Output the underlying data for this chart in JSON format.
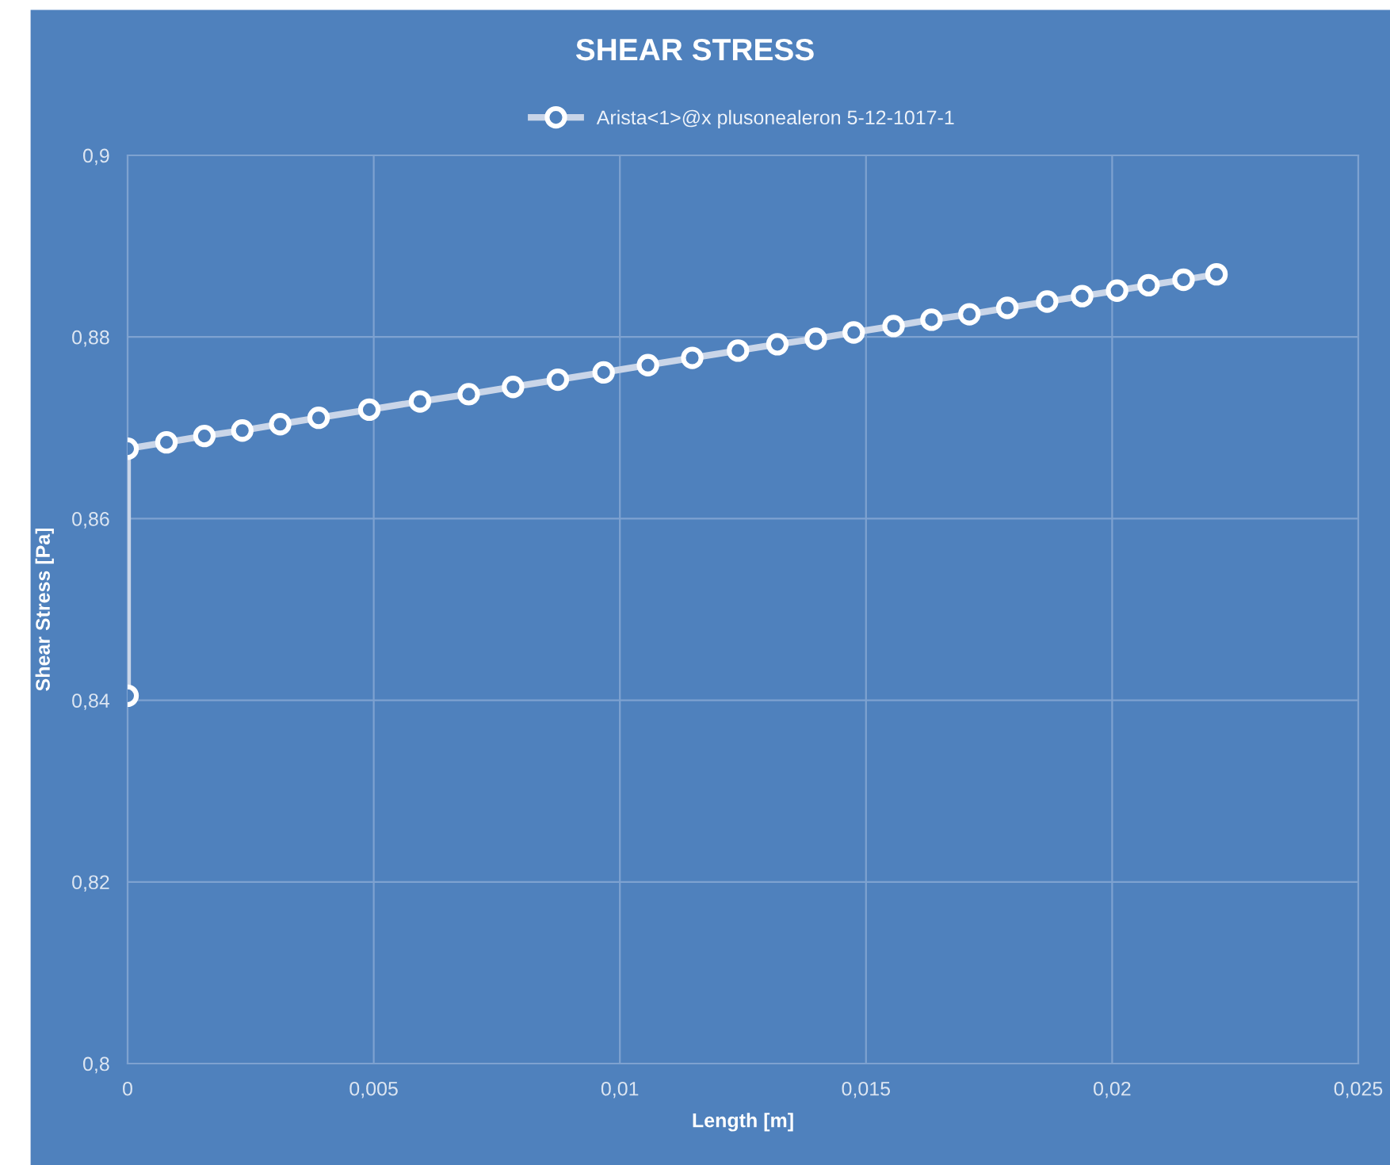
{
  "chart_data": {
    "type": "line",
    "title": "SHEAR STRESS",
    "xlabel": "Length [m]",
    "ylabel": "Shear Stress [Pa]",
    "series": [
      {
        "name": "Arista<1>@x plusonealeron 5-12-1017-1",
        "color": "#c9d5e8",
        "x": [
          0,
          0,
          0.00079,
          0.00156,
          0.00233,
          0.0031,
          0.00388,
          0.00491,
          0.00594,
          0.00693,
          0.00783,
          0.00874,
          0.00967,
          0.01057,
          0.01147,
          0.0124,
          0.0132,
          0.01398,
          0.01475,
          0.01556,
          0.01633,
          0.0171,
          0.01787,
          0.01868,
          0.01939,
          0.0201,
          0.02074,
          0.02145,
          0.02212
        ],
        "values": [
          0.8405,
          0.8677,
          0.8684,
          0.8691,
          0.8697,
          0.8704,
          0.8711,
          0.872,
          0.8729,
          0.8737,
          0.8745,
          0.8753,
          0.8761,
          0.8769,
          0.8777,
          0.8785,
          0.8792,
          0.8798,
          0.8805,
          0.8812,
          0.8819,
          0.8825,
          0.8832,
          0.8839,
          0.8845,
          0.8851,
          0.8857,
          0.8863,
          0.8869
        ]
      }
    ],
    "xlim": [
      0,
      0.025
    ],
    "ylim": [
      0.8,
      0.9
    ],
    "xticks": [
      0,
      {
        "value": 0.005,
        "label": "0,005"
      },
      {
        "value": 0.01,
        "label": "0,01"
      },
      {
        "value": 0.015,
        "label": "0,015"
      },
      {
        "value": 0.02,
        "label": "0,02"
      },
      {
        "value": 0.025,
        "label": "0,025"
      }
    ],
    "yticks": [
      {
        "value": 0.8,
        "label": "0,8"
      },
      {
        "value": 0.82,
        "label": "0,82"
      },
      {
        "value": 0.84,
        "label": "0,84"
      },
      {
        "value": 0.86,
        "label": "0,86"
      },
      {
        "value": 0.88,
        "label": "0,88"
      },
      {
        "value": 0.9,
        "label": "0,9"
      }
    ],
    "grid": true,
    "legend": "top",
    "marker": "circle",
    "line_style": "solid"
  }
}
